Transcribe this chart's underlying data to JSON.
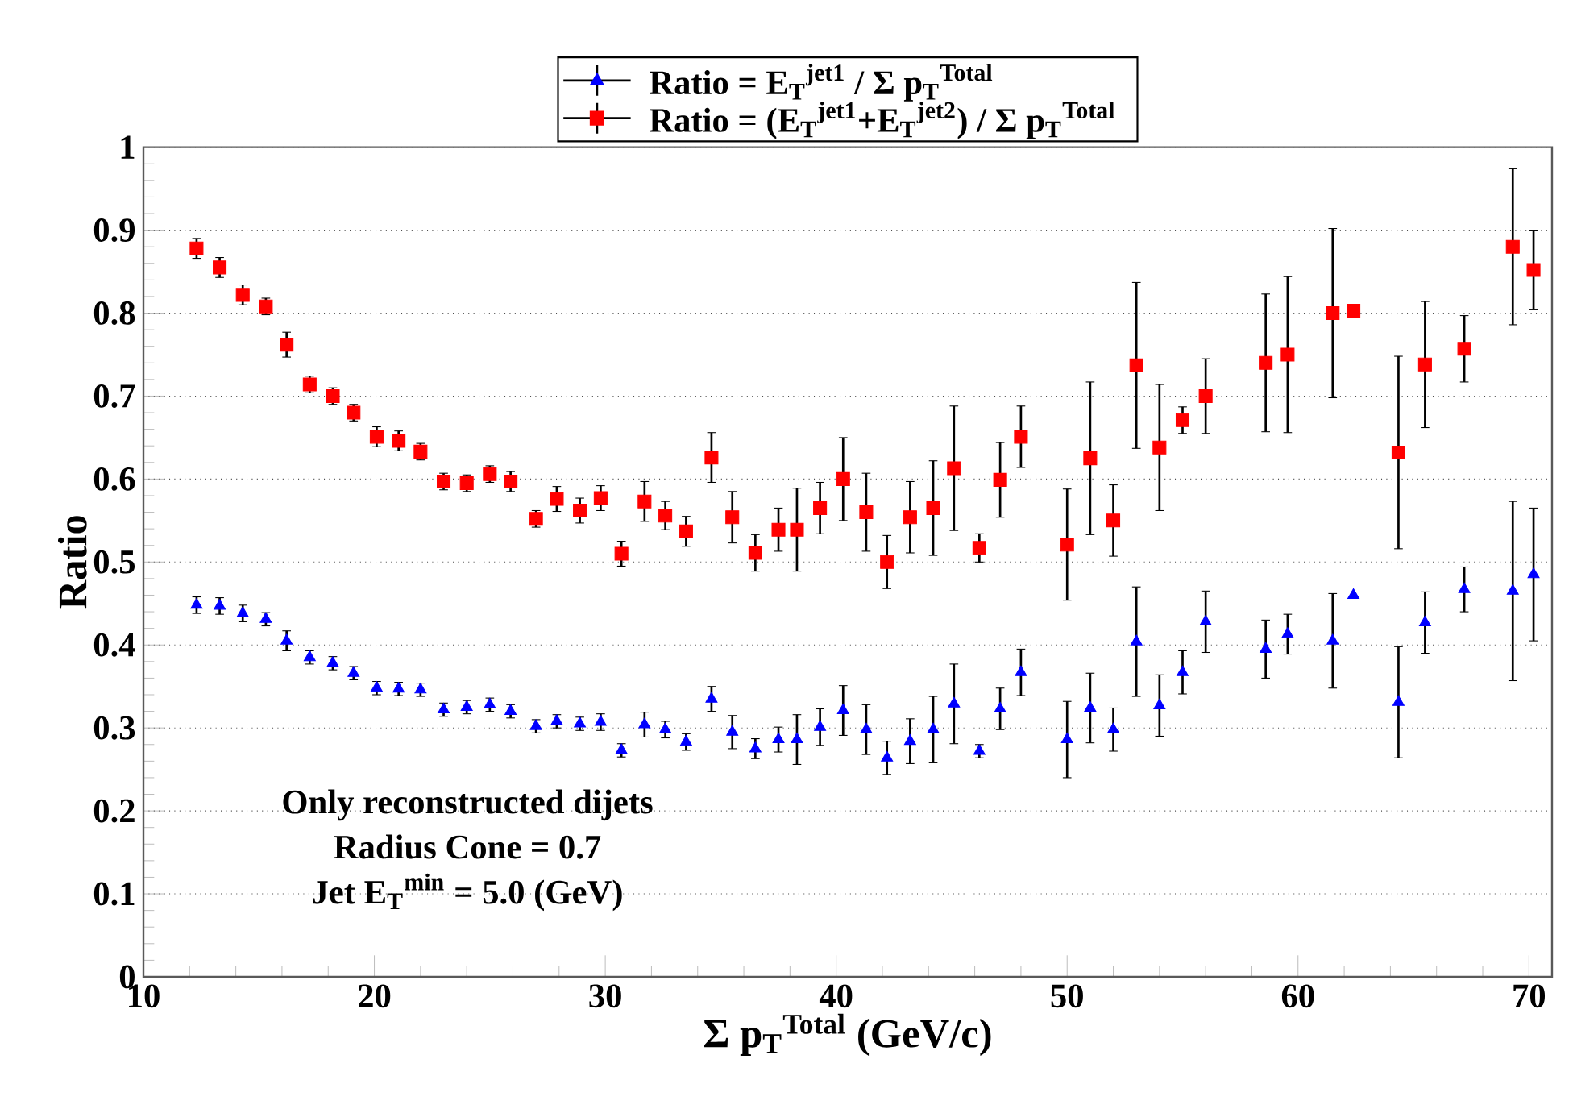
{
  "chart_data": {
    "type": "scatter",
    "xlabel": "Σ p$_{T}$$^{Total}$ (GeV/c)",
    "ylabel": "Ratio",
    "annotations": [
      "Only reconstructed dijets",
      "Radius Cone = 0.7",
      "Jet E$_{T}$$^{min}$ = 5.0 (GeV)"
    ],
    "x": [
      12.3,
      13.3,
      14.3,
      15.3,
      16.2,
      17.2,
      18.2,
      19.1,
      20.1,
      21.05,
      22,
      23,
      24,
      25,
      25.9,
      27,
      27.9,
      28.9,
      29.8,
      30.7,
      31.7,
      32.6,
      33.5,
      34.6,
      35.5,
      36.5,
      37.5,
      38.3,
      39.3,
      40.3,
      41.3,
      42.2,
      43.2,
      44.2,
      45.1,
      46.2,
      47.1,
      48.0,
      50,
      51,
      52,
      53,
      54,
      55,
      56,
      58.6,
      59.55,
      61.5,
      62.4,
      64.35,
      65.5,
      67.2,
      69.3,
      70.2
    ],
    "series": [
      {
        "name": "Ratio = E$_{T}$$^{jet1}$ / Σ p$_{T}$$^{Total}$",
        "color": "#0000ff",
        "marker": "triangle",
        "values": [
          0.448,
          0.447,
          0.438,
          0.431,
          0.405,
          0.385,
          0.378,
          0.366,
          0.348,
          0.347,
          0.346,
          0.322,
          0.325,
          0.328,
          0.32,
          0.302,
          0.308,
          0.305,
          0.307,
          0.273,
          0.304,
          0.298,
          0.283,
          0.335,
          0.295,
          0.275,
          0.286,
          0.286,
          0.301,
          0.321,
          0.298,
          0.264,
          0.284,
          0.298,
          0.329,
          0.272,
          0.323,
          0.367,
          0.286,
          0.324,
          0.298,
          0.404,
          0.327,
          0.367,
          0.428,
          0.395,
          0.413,
          0.405,
          0.46,
          0.331,
          0.427,
          0.467,
          0.465,
          0.485
        ],
        "errors": [
          0.01,
          0.01,
          0.01,
          0.008,
          0.012,
          0.008,
          0.008,
          0.008,
          0.008,
          0.008,
          0.008,
          0.008,
          0.008,
          0.008,
          0.008,
          0.008,
          0.008,
          0.008,
          0.01,
          0.008,
          0.015,
          0.01,
          0.01,
          0.015,
          0.02,
          0.012,
          0.015,
          0.03,
          0.022,
          0.03,
          0.03,
          0.02,
          0.027,
          0.04,
          0.048,
          0.008,
          0.025,
          0.028,
          0.046,
          0.042,
          0.026,
          0.066,
          0.037,
          0.026,
          0.037,
          0.035,
          0.024,
          0.057,
          null,
          0.067,
          0.037,
          0.027,
          0.108,
          0.08
        ]
      },
      {
        "name": "Ratio = (E$_{T}$$^{jet1}$+E$_{T}$$^{jet2}$) / Σ p$_{T}$$^{Total}$",
        "color": "#ff0000",
        "marker": "square",
        "values": [
          0.878,
          0.855,
          0.822,
          0.808,
          0.762,
          0.714,
          0.7,
          0.68,
          0.651,
          0.646,
          0.633,
          0.597,
          0.595,
          0.606,
          0.597,
          0.552,
          0.576,
          0.562,
          0.577,
          0.51,
          0.573,
          0.556,
          0.537,
          0.626,
          0.554,
          0.511,
          0.539,
          0.539,
          0.565,
          0.6,
          0.56,
          0.5,
          0.554,
          0.565,
          0.613,
          0.517,
          0.599,
          0.651,
          0.521,
          0.625,
          0.55,
          0.737,
          0.638,
          0.671,
          0.7,
          0.74,
          0.75,
          0.8,
          0.803,
          0.632,
          0.738,
          0.757,
          0.88,
          0.852
        ],
        "errors": [
          0.012,
          0.012,
          0.012,
          0.01,
          0.015,
          0.01,
          0.01,
          0.01,
          0.012,
          0.012,
          0.01,
          0.01,
          0.01,
          0.01,
          0.012,
          0.01,
          0.015,
          0.015,
          0.015,
          0.015,
          0.024,
          0.017,
          0.018,
          0.03,
          0.031,
          0.022,
          0.026,
          0.05,
          0.031,
          0.05,
          0.047,
          0.032,
          0.043,
          0.057,
          0.075,
          0.017,
          0.045,
          0.037,
          0.067,
          0.092,
          0.043,
          0.1,
          0.076,
          0.016,
          0.045,
          0.083,
          0.094,
          0.102,
          null,
          0.116,
          0.076,
          0.04,
          0.094,
          0.048
        ]
      }
    ],
    "xlim": [
      10,
      71
    ],
    "xticks": [
      10,
      20,
      30,
      40,
      50,
      60,
      70
    ],
    "ylim": [
      0,
      1
    ],
    "yticks": [
      0,
      0.1,
      0.2,
      0.3,
      0.4,
      0.5,
      0.6,
      0.7,
      0.8,
      0.9,
      1
    ],
    "grid": "y",
    "legend": "top"
  }
}
